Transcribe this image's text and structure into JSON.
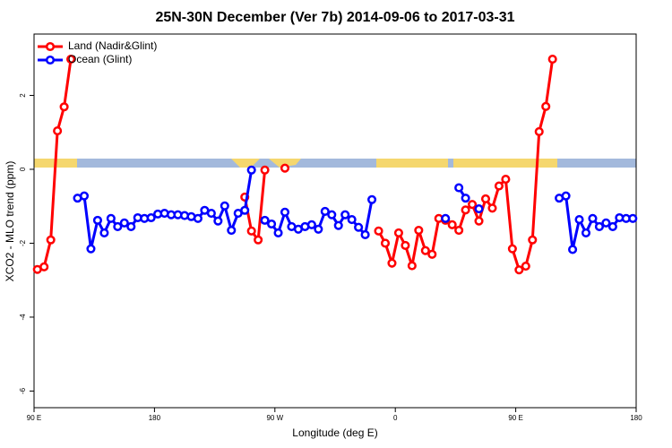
{
  "chart_data": {
    "type": "line",
    "title": "25N-30N December (Ver 7b)   2014-09-06 to 2017-03-31",
    "x_label": "Longitude (deg E)",
    "y_label": "XCO2 - MLO trend (ppm)",
    "x": [
      92.5,
      97.5,
      102.5,
      107.5,
      112.5,
      117.5,
      122.5,
      127.5,
      132.5,
      137.5,
      142.5,
      147.5,
      152.5,
      157.5,
      162.5,
      167.5,
      172.5,
      177.5,
      182.5,
      187.5,
      192.5,
      197.5,
      202.5,
      207.5,
      212.5,
      217.5,
      222.5,
      227.5,
      232.5,
      237.5,
      242.5,
      247.5,
      252.5,
      257.5,
      262.5,
      267.5,
      272.5,
      277.5,
      282.5,
      287.5,
      292.5,
      297.5,
      302.5,
      307.5,
      312.5,
      317.5,
      322.5,
      327.5,
      332.5,
      337.5,
      342.5,
      347.5,
      352.5,
      357.5,
      362.5,
      367.5,
      372.5,
      377.5,
      382.5,
      387.5,
      392.5,
      397.5,
      402.5,
      407.5,
      412.5,
      417.5,
      422.5,
      427.5,
      432.5,
      437.5,
      442.5,
      447.5,
      452.5,
      457.5,
      462.5,
      467.5,
      472.5,
      477.5,
      482.5,
      487.5,
      492.5,
      497.5,
      502.5,
      507.5,
      512.5,
      517.5,
      522.5,
      527.5,
      532.5,
      537.5
    ],
    "series": [
      {
        "name": "Land (Nadir&Glint)",
        "color": "#ff0000",
        "values": [
          -2.71,
          -2.64,
          -1.91,
          1.04,
          1.69,
          2.98,
          null,
          null,
          null,
          null,
          null,
          null,
          null,
          null,
          null,
          null,
          null,
          null,
          null,
          null,
          null,
          null,
          null,
          null,
          null,
          null,
          null,
          null,
          null,
          null,
          null,
          -0.75,
          -1.67,
          -1.91,
          -0.02,
          null,
          null,
          0.03,
          null,
          null,
          null,
          null,
          null,
          null,
          null,
          null,
          null,
          null,
          null,
          null,
          null,
          -1.67,
          -2.0,
          -2.54,
          -1.72,
          -2.06,
          -2.61,
          -1.65,
          -2.2,
          -2.3,
          -1.33,
          -1.38,
          -1.5,
          -1.65,
          -1.1,
          -0.95,
          -1.4,
          -0.8,
          -1.05,
          -0.45,
          -0.27,
          -2.15,
          -2.72,
          -2.62,
          -1.91,
          1.02,
          1.7,
          2.98,
          null,
          null,
          null,
          null,
          null,
          null,
          null,
          null,
          null,
          null,
          null,
          null
        ]
      },
      {
        "name": "Ocean (Glint)",
        "color": "#0000ff",
        "values": [
          null,
          null,
          null,
          null,
          null,
          null,
          -0.78,
          -0.72,
          -2.15,
          -1.38,
          -1.72,
          -1.33,
          -1.55,
          -1.45,
          -1.55,
          -1.31,
          -1.33,
          -1.31,
          -1.21,
          -1.19,
          -1.23,
          -1.23,
          -1.25,
          -1.28,
          -1.33,
          -1.11,
          -1.19,
          -1.4,
          -0.99,
          -1.65,
          -1.19,
          -1.11,
          -0.02,
          null,
          -1.38,
          -1.48,
          -1.72,
          -1.16,
          -1.55,
          -1.62,
          -1.55,
          -1.5,
          -1.62,
          -1.14,
          -1.23,
          -1.52,
          -1.23,
          -1.36,
          -1.57,
          -1.77,
          -0.82,
          null,
          null,
          null,
          null,
          null,
          null,
          null,
          null,
          null,
          null,
          -1.33,
          null,
          -0.5,
          -0.78,
          null,
          -1.07,
          null,
          null,
          null,
          null,
          null,
          null,
          null,
          null,
          null,
          null,
          null,
          -0.78,
          -0.72,
          -2.17,
          -1.36,
          -1.72,
          -1.33,
          -1.55,
          -1.45,
          -1.55,
          -1.31,
          -1.33,
          -1.33
        ]
      }
    ],
    "xlim": [
      90,
      540
    ],
    "xticks": [
      {
        "value": 90,
        "label": "90 E"
      },
      {
        "value": 180,
        "label": "180"
      },
      {
        "value": 270,
        "label": "90 W"
      },
      {
        "value": 360,
        "label": "0"
      },
      {
        "value": 450,
        "label": "90 E"
      },
      {
        "value": 540,
        "label": "180"
      }
    ],
    "ylim": [
      -6.45,
      3.66
    ],
    "yticks": [
      -6,
      -4,
      -2,
      0,
      2
    ],
    "legend": "top-left"
  }
}
